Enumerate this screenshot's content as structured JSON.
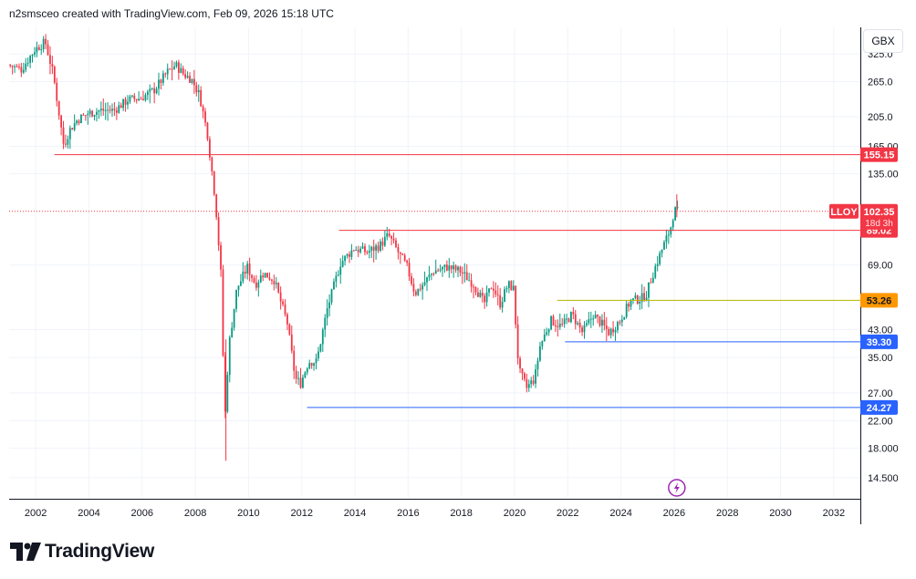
{
  "header": {
    "title": "n2smsceo created with TradingView.com, Feb 09, 2026 15:18 UTC"
  },
  "currency": "GBX",
  "brand": {
    "name": "TradingView"
  },
  "colors": {
    "red": "#f23645",
    "orange": "#ff9800",
    "blue": "#2962ff",
    "up": "#089981",
    "down": "#f23645",
    "olive": "#b8b400"
  },
  "chart_data": {
    "type": "candlestick",
    "symbol": "LLOY",
    "interval": "monthly",
    "y_scale": "log",
    "currency": "GBX",
    "x_range": [
      2001.0,
      2033.0
    ],
    "y_range": [
      12.5,
      395
    ],
    "price_ticks": [
      "325.0",
      "265.0",
      "205.0",
      "165.00",
      "135.00",
      "102.35",
      "69.00",
      "53.26",
      "43.00",
      "35.00",
      "27.00",
      "22.00",
      "18.000",
      "14.500"
    ],
    "price_tick_values": [
      325,
      265,
      205,
      165,
      135,
      69,
      43,
      35,
      27,
      22,
      18,
      14.5
    ],
    "year_ticks": [
      "2002",
      "2004",
      "2006",
      "2008",
      "2010",
      "2012",
      "2014",
      "2016",
      "2018",
      "2020",
      "2022",
      "2024",
      "2026",
      "2028",
      "2030",
      "2032"
    ],
    "current_price": {
      "value": 102.35,
      "label": "102.35",
      "countdown": "18d 3h",
      "symbol_label": "LLOY"
    },
    "levels": [
      {
        "value": 155.15,
        "label": "155.15",
        "color": "#f23645",
        "x_start": 2002.7
      },
      {
        "value": 89.02,
        "label": "89.02",
        "color": "#f23645",
        "x_start": 2013.4
      },
      {
        "value": 53.26,
        "label": "53.26",
        "color": "#ff9800",
        "x_start": 2021.6,
        "line_color": "#b8b400"
      },
      {
        "value": 39.3,
        "label": "39.30",
        "color": "#2962ff",
        "x_start": 2021.9
      },
      {
        "value": 24.27,
        "label": "24.27",
        "color": "#2962ff",
        "x_start": 2012.2
      }
    ],
    "path": [
      [
        2001.0,
        300
      ],
      [
        2001.5,
        290
      ],
      [
        2002.0,
        335
      ],
      [
        2002.4,
        355
      ],
      [
        2002.7,
        280
      ],
      [
        2003.1,
        165
      ],
      [
        2003.3,
        185
      ],
      [
        2003.6,
        200
      ],
      [
        2004.0,
        210
      ],
      [
        2004.5,
        215
      ],
      [
        2005.0,
        215
      ],
      [
        2005.5,
        232
      ],
      [
        2006.0,
        235
      ],
      [
        2006.5,
        250
      ],
      [
        2007.0,
        285
      ],
      [
        2007.3,
        300
      ],
      [
        2007.6,
        280
      ],
      [
        2007.9,
        270
      ],
      [
        2008.2,
        240
      ],
      [
        2008.5,
        180
      ],
      [
        2008.8,
        110
      ],
      [
        2009.0,
        65
      ],
      [
        2009.15,
        22
      ],
      [
        2009.3,
        38
      ],
      [
        2009.6,
        58
      ],
      [
        2010.0,
        68
      ],
      [
        2010.3,
        60
      ],
      [
        2010.6,
        65
      ],
      [
        2011.0,
        62
      ],
      [
        2011.5,
        45
      ],
      [
        2011.8,
        30
      ],
      [
        2012.0,
        29
      ],
      [
        2012.3,
        34
      ],
      [
        2012.6,
        34
      ],
      [
        2013.0,
        50
      ],
      [
        2013.5,
        70
      ],
      [
        2014.0,
        78
      ],
      [
        2014.5,
        76
      ],
      [
        2015.0,
        80
      ],
      [
        2015.3,
        86
      ],
      [
        2015.7,
        75
      ],
      [
        2016.0,
        68
      ],
      [
        2016.3,
        56
      ],
      [
        2016.6,
        60
      ],
      [
        2017.0,
        66
      ],
      [
        2017.5,
        68
      ],
      [
        2018.0,
        66
      ],
      [
        2018.5,
        60
      ],
      [
        2018.9,
        52
      ],
      [
        2019.2,
        60
      ],
      [
        2019.5,
        52
      ],
      [
        2019.8,
        60
      ],
      [
        2020.0,
        58
      ],
      [
        2020.2,
        32
      ],
      [
        2020.5,
        28
      ],
      [
        2020.8,
        30
      ],
      [
        2021.0,
        38
      ],
      [
        2021.4,
        46
      ],
      [
        2021.8,
        44
      ],
      [
        2022.2,
        48
      ],
      [
        2022.6,
        42
      ],
      [
        2023.0,
        48
      ],
      [
        2023.3,
        45
      ],
      [
        2023.6,
        42
      ],
      [
        2024.0,
        46
      ],
      [
        2024.4,
        53
      ],
      [
        2024.8,
        54
      ],
      [
        2025.0,
        56
      ],
      [
        2025.3,
        67
      ],
      [
        2025.6,
        78
      ],
      [
        2025.9,
        90
      ],
      [
        2026.05,
        104
      ],
      [
        2026.1,
        102.35
      ]
    ]
  }
}
